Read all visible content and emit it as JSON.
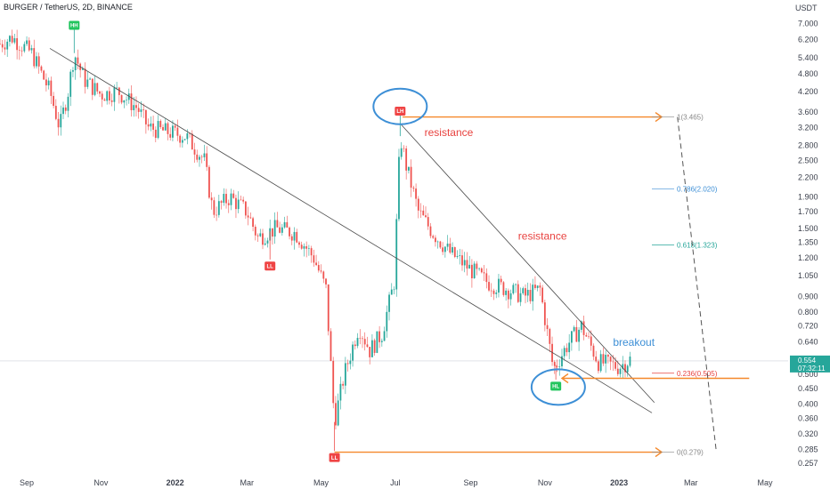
{
  "header": {
    "title": "BURGER / TetherUS, 2D, BINANCE"
  },
  "chart_data": {
    "type": "candlestick",
    "y_axis": {
      "unit": "USDT",
      "scale": "log",
      "ticks": [
        "7.000",
        "6.200",
        "5.400",
        "4.800",
        "4.200",
        "3.600",
        "3.200",
        "2.800",
        "2.500",
        "2.200",
        "1.900",
        "1.700",
        "1.500",
        "1.350",
        "1.200",
        "1.050",
        "0.900",
        "0.800",
        "0.720",
        "0.640",
        "0.500",
        "0.450",
        "0.400",
        "0.360",
        "0.320",
        "0.285",
        "0.257"
      ],
      "ylim": [
        0.245,
        7.6
      ]
    },
    "x_axis": {
      "ticks": [
        "Sep",
        "Nov",
        "2022",
        "Mar",
        "May",
        "Jul",
        "Sep",
        "Nov",
        "2023",
        "Mar",
        "May"
      ],
      "xlim": [
        "2021-08-10",
        "2023-05-20"
      ]
    },
    "current_price": {
      "value": "0.554",
      "countdown": "07:32:11"
    },
    "price_path": [
      [
        "2021-08-10",
        6.0
      ],
      [
        "2021-08-20",
        6.3
      ],
      [
        "2021-09-05",
        5.6
      ],
      [
        "2021-09-20",
        4.2
      ],
      [
        "2021-09-28",
        3.2
      ],
      [
        "2021-10-05",
        4.2
      ],
      [
        "2021-10-10",
        5.6
      ],
      [
        "2021-10-18",
        4.6
      ],
      [
        "2021-11-01",
        4.1
      ],
      [
        "2021-11-15",
        4.2
      ],
      [
        "2021-12-01",
        3.7
      ],
      [
        "2021-12-10",
        3.2
      ],
      [
        "2021-12-25",
        3.1
      ],
      [
        "2022-01-10",
        3.0
      ],
      [
        "2022-01-25",
        2.5
      ],
      [
        "2022-02-01",
        1.7
      ],
      [
        "2022-02-15",
        1.9
      ],
      [
        "2022-03-01",
        1.7
      ],
      [
        "2022-03-10",
        1.4
      ],
      [
        "2022-03-25",
        1.5
      ],
      [
        "2022-04-10",
        1.45
      ],
      [
        "2022-04-25",
        1.2
      ],
      [
        "2022-05-05",
        0.95
      ],
      [
        "2022-05-12",
        0.35
      ],
      [
        "2022-05-20",
        0.5
      ],
      [
        "2022-06-01",
        0.72
      ],
      [
        "2022-06-10",
        0.6
      ],
      [
        "2022-06-20",
        0.68
      ],
      [
        "2022-06-30",
        1.0
      ],
      [
        "2022-07-05",
        3.0
      ],
      [
        "2022-07-10",
        2.4
      ],
      [
        "2022-07-20",
        1.7
      ],
      [
        "2022-08-01",
        1.45
      ],
      [
        "2022-08-15",
        1.25
      ],
      [
        "2022-09-01",
        1.1
      ],
      [
        "2022-09-15",
        1.0
      ],
      [
        "2022-10-01",
        0.95
      ],
      [
        "2022-10-15",
        0.9
      ],
      [
        "2022-10-28",
        0.95
      ],
      [
        "2022-11-08",
        0.52
      ],
      [
        "2022-11-20",
        0.63
      ],
      [
        "2022-12-01",
        0.72
      ],
      [
        "2022-12-15",
        0.55
      ],
      [
        "2023-01-01",
        0.53
      ],
      [
        "2023-01-10",
        0.56
      ]
    ],
    "trendlines": [
      {
        "from": [
          "2021-09-20",
          5.8
        ],
        "to": [
          "2023-01-28",
          0.375
        ]
      },
      {
        "from": [
          "2022-07-05",
          3.3
        ],
        "to": [
          "2023-01-30",
          0.405
        ]
      }
    ],
    "horizontal_lines": [
      {
        "from": "2022-07-07",
        "to": "2023-02-05",
        "value": 3.465,
        "color": "#f5882a"
      },
      {
        "from": "2022-05-12",
        "to": "2023-02-05",
        "value": 0.279,
        "color": "#f5882a"
      },
      {
        "from": "2022-11-15",
        "to": "2023-04-18",
        "value": 0.486,
        "color": "#f5882a"
      }
    ],
    "fib_levels": [
      {
        "ratio": "1",
        "price": "3.465",
        "value": 3.465,
        "color": "#888888"
      },
      {
        "ratio": "0.786",
        "price": "2.020",
        "value": 2.02,
        "color": "#3d8fd6"
      },
      {
        "ratio": "0.618",
        "price": "1.323",
        "value": 1.323,
        "color": "#26a69a"
      },
      {
        "ratio": "0.236",
        "price": "0.505",
        "value": 0.505,
        "color": "#e8423f"
      },
      {
        "ratio": "0",
        "price": "0.279",
        "value": 0.279,
        "color": "#888888"
      }
    ],
    "pivot_labels": [
      {
        "text": "HH",
        "date": "2021-10-10",
        "value": 6.9,
        "color": "#22c55e"
      },
      {
        "text": "LL",
        "date": "2022-03-20",
        "value": 1.13,
        "color": "#ef4444"
      },
      {
        "text": "LL",
        "date": "2022-05-12",
        "value": 0.268,
        "color": "#ef4444"
      },
      {
        "text": "LH",
        "date": "2022-07-05",
        "value": 3.62,
        "color": "#ef4444"
      },
      {
        "text": "HL",
        "date": "2022-11-10",
        "value": 0.458,
        "color": "#22c55e"
      }
    ],
    "annotations": [
      {
        "text": "resistance",
        "date": "2022-07-25",
        "value": 3.0,
        "color": "#e8423f"
      },
      {
        "text": "resistance",
        "date": "2022-10-10",
        "value": 1.38,
        "color": "#e8423f"
      },
      {
        "text": "breakout",
        "date": "2022-12-27",
        "value": 0.62,
        "color": "#3d8fd6"
      }
    ],
    "circles": [
      {
        "date": "2022-07-05",
        "value": 3.75,
        "color": "#3d8fd6"
      },
      {
        "date": "2022-11-12",
        "value": 0.455,
        "color": "#3d8fd6"
      }
    ]
  }
}
